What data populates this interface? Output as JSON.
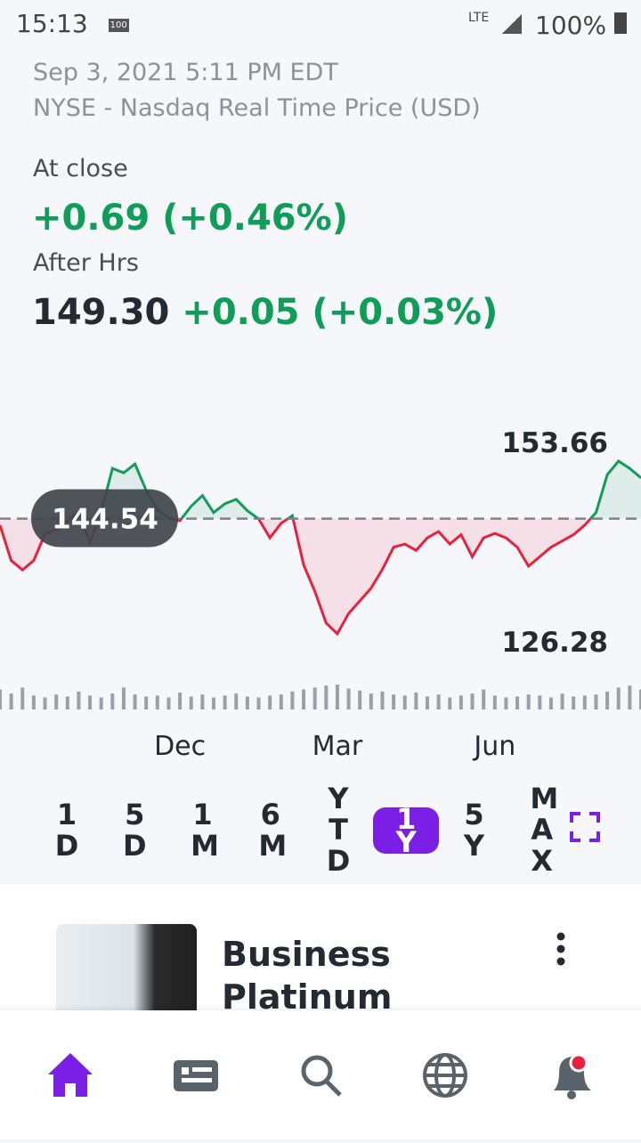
{
  "status_bar": {
    "time": "15:13",
    "battery_icon": "100",
    "network": "LTE",
    "battery": "100%"
  },
  "quote": {
    "timestamp": "Sep 3, 2021 5:11 PM EDT",
    "source": "NYSE - Nasdaq Real Time Price (USD)",
    "close_label": "At close",
    "close_change": "+0.69 (+0.46%)",
    "after_label": "After Hrs",
    "after_price": "149.30",
    "after_change": "+0.05 (+0.03%)"
  },
  "chart_data": {
    "type": "line",
    "categories": [
      null,
      null,
      null,
      null,
      null,
      null,
      null,
      null,
      null,
      null,
      null,
      null,
      null,
      null,
      null,
      null,
      "Dec",
      null,
      null,
      null,
      null,
      null,
      null,
      null,
      null,
      null,
      null,
      null,
      null,
      null,
      "Mar",
      null,
      null,
      null,
      null,
      null,
      null,
      null,
      null,
      null,
      null,
      null,
      null,
      null,
      "Jun",
      null,
      null,
      null,
      null,
      null,
      null,
      null,
      null,
      null,
      null,
      null,
      null,
      null
    ],
    "series": [
      {
        "values": [
          143.5,
          137.9,
          136.4,
          137.9,
          142.1,
          142.8,
          144.2,
          145.6,
          140.7,
          145.6,
          152.5,
          151.8,
          153.2,
          149.0,
          146.0,
          144.6,
          144.2,
          146.5,
          148.2,
          145.5,
          146.9,
          147.6,
          145.8,
          144.5,
          141.5,
          143.8,
          145.0,
          137.2,
          133.0,
          128.0,
          126.3,
          129.5,
          131.5,
          133.5,
          136.5,
          140.0,
          140.5,
          139.5,
          141.5,
          142.5,
          140.5,
          142.0,
          138.5,
          141.5,
          142.2,
          141.5,
          140.0,
          137.0,
          138.5,
          140.0,
          141.0,
          142.0,
          143.5,
          145.5,
          151.5,
          153.66,
          152.5,
          151.0
        ],
        "up_color": "#0f9d58",
        "down_color": "#e8223d"
      }
    ],
    "volume": [
      20,
      16,
      22,
      14,
      12,
      15,
      13,
      18,
      14,
      12,
      16,
      22,
      15,
      13,
      14,
      12,
      17,
      13,
      15,
      12,
      14,
      16,
      13,
      12,
      14,
      15,
      18,
      20,
      22,
      24,
      25,
      21,
      19,
      16,
      18,
      15,
      14,
      17,
      13,
      15,
      12,
      14,
      16,
      20,
      14,
      12,
      13,
      15,
      14,
      12,
      16,
      13,
      14,
      15,
      18,
      22,
      24,
      20
    ],
    "volume_color": "#9aa0a6",
    "ylim": [
      126.28,
      153.66
    ],
    "reference": 144.54
  },
  "ranges": {
    "options": [
      "1D",
      "5D",
      "1M",
      "6M",
      "YTD",
      "1Y",
      "5Y",
      "MAX"
    ],
    "selected": "1Y"
  },
  "article": {
    "title": "Business Platinum"
  }
}
